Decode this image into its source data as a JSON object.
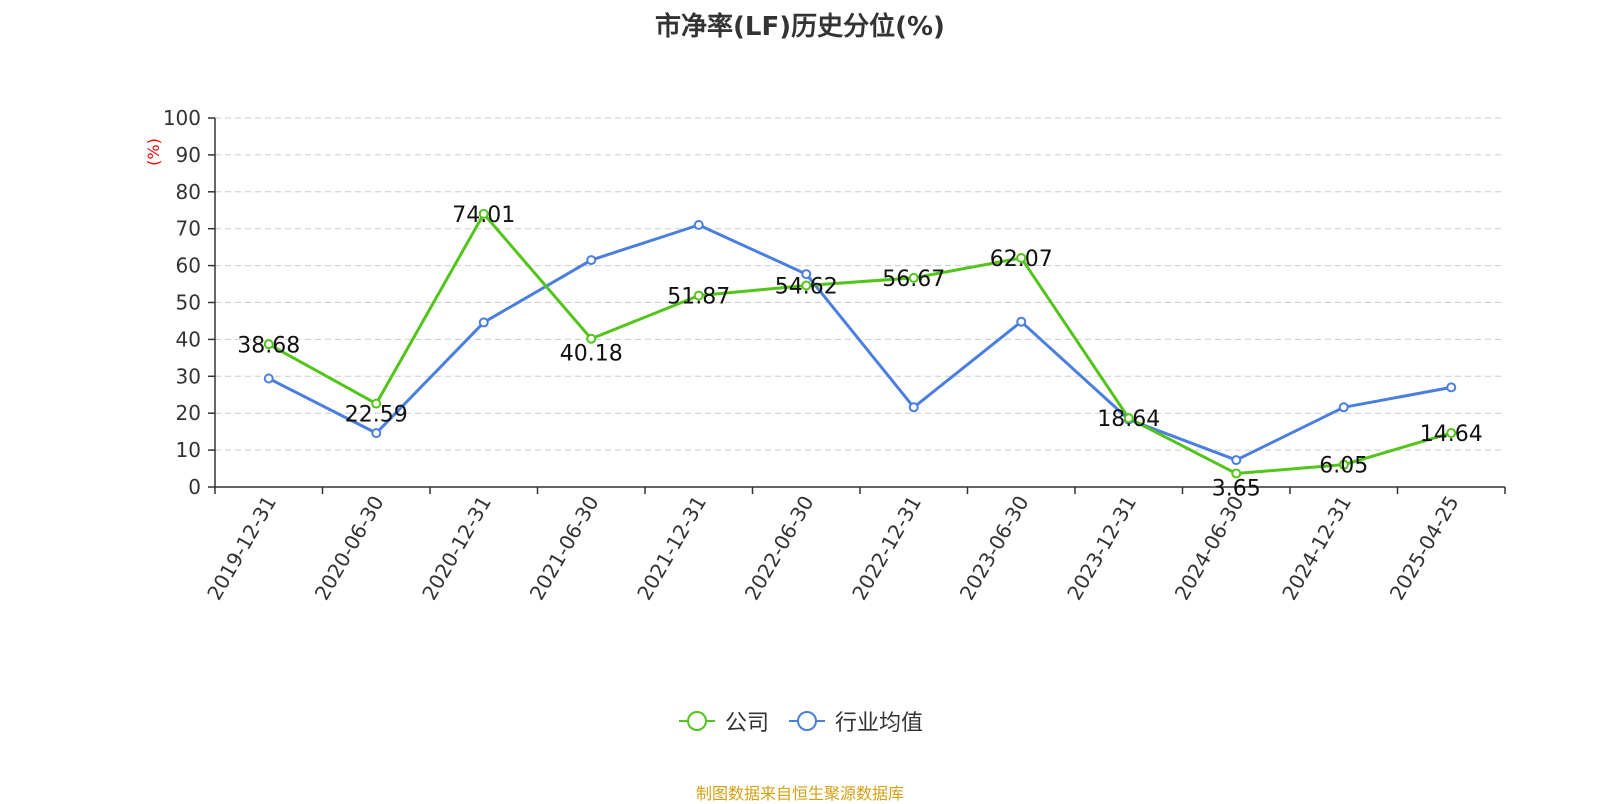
{
  "chart_data": {
    "type": "line",
    "title": "市净率(LF)历史分位(%)",
    "ylabel": "(%)",
    "xlabel": "",
    "ylim": [
      0,
      100
    ],
    "yticks": [
      0,
      10,
      20,
      30,
      40,
      50,
      60,
      70,
      80,
      90,
      100
    ],
    "categories": [
      "2019-12-31",
      "2020-06-30",
      "2020-12-31",
      "2021-06-30",
      "2021-12-31",
      "2022-06-30",
      "2022-12-31",
      "2023-06-30",
      "2023-12-31",
      "2024-06-30",
      "2024-12-31",
      "2025-04-25"
    ],
    "grid": true,
    "legend_position": "bottom",
    "series": [
      {
        "name": "公司",
        "color": "#52c41a",
        "values": [
          38.68,
          22.59,
          74.01,
          40.18,
          51.87,
          54.62,
          56.67,
          62.07,
          18.64,
          3.65,
          6.05,
          14.64
        ],
        "labels": [
          "38.68",
          "22.59",
          "74.01",
          "40.18",
          "51.87",
          "54.62",
          "56.67",
          "62.07",
          "18.64",
          "3.65",
          "6.05",
          "14.64"
        ]
      },
      {
        "name": "行业均值",
        "color": "#4a7fe0",
        "values": [
          29.4,
          14.6,
          44.6,
          61.5,
          71.0,
          57.7,
          21.6,
          44.8,
          18.3,
          7.3,
          21.6,
          27.0
        ]
      }
    ]
  },
  "footer": {
    "source": "制图数据来自恒生聚源数据库",
    "source_color": "#d4a017"
  },
  "colors": {
    "axis": "#333333",
    "grid": "#cccccc",
    "ylabel": "#ff0000"
  }
}
